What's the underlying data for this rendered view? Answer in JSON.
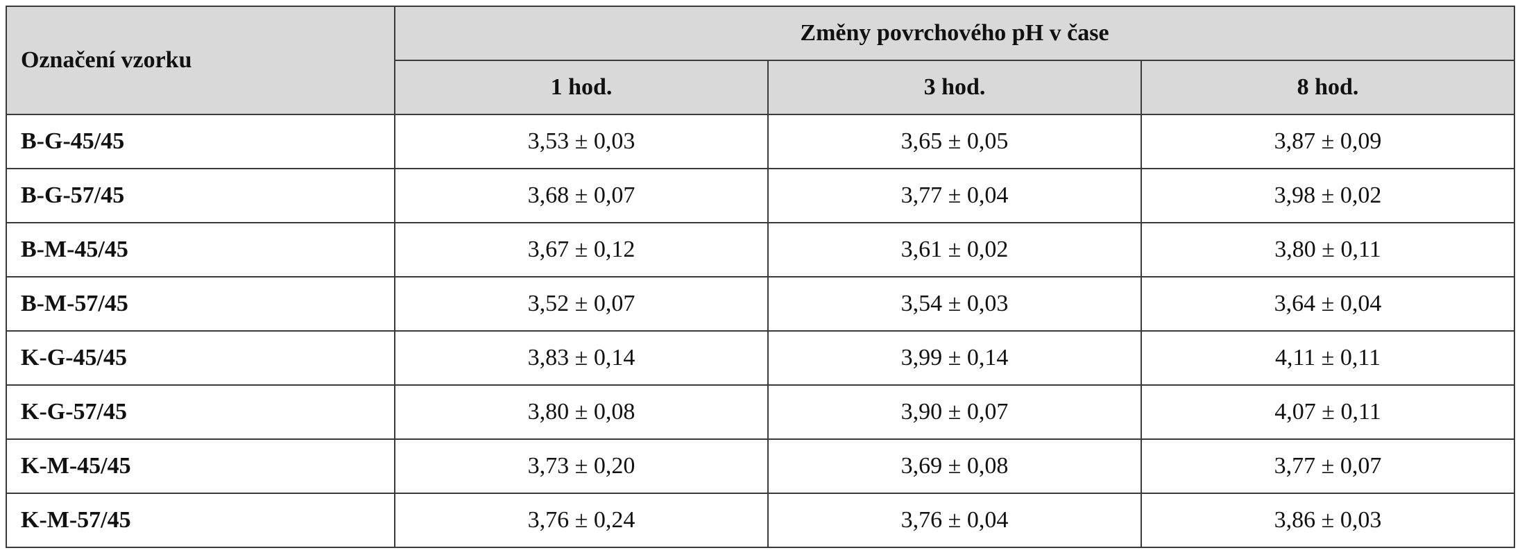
{
  "table": {
    "row_header": "Označení vzorku",
    "group_header": "Změny povrchového pH v čase",
    "columns": [
      "1 hod.",
      "3 hod.",
      "8 hod."
    ],
    "rows": [
      {
        "label": "B-G-45/45",
        "values": [
          "3,53 ± 0,03",
          "3,65 ± 0,05",
          "3,87 ± 0,09"
        ]
      },
      {
        "label": "B-G-57/45",
        "values": [
          "3,68 ± 0,07",
          "3,77 ± 0,04",
          "3,98 ± 0,02"
        ]
      },
      {
        "label": "B-M-45/45",
        "values": [
          "3,67 ± 0,12",
          "3,61 ± 0,02",
          "3,80 ± 0,11"
        ]
      },
      {
        "label": "B-M-57/45",
        "values": [
          "3,52 ± 0,07",
          "3,54 ± 0,03",
          "3,64 ± 0,04"
        ]
      },
      {
        "label": "K-G-45/45",
        "values": [
          "3,83 ± 0,14",
          "3,99 ± 0,14",
          "4,11 ± 0,11"
        ]
      },
      {
        "label": "K-G-57/45",
        "values": [
          "3,80 ± 0,08",
          "3,90 ± 0,07",
          "4,07 ± 0,11"
        ]
      },
      {
        "label": "K-M-45/45",
        "values": [
          "3,73 ± 0,20",
          "3,69 ± 0,08",
          "3,77 ± 0,07"
        ]
      },
      {
        "label": "K-M-57/45",
        "values": [
          "3,76 ± 0,24",
          "3,76 ± 0,04",
          "3,86 ± 0,03"
        ]
      }
    ]
  },
  "colors": {
    "header_bg": "#d9d9d9",
    "border": "#3a3a3a"
  }
}
